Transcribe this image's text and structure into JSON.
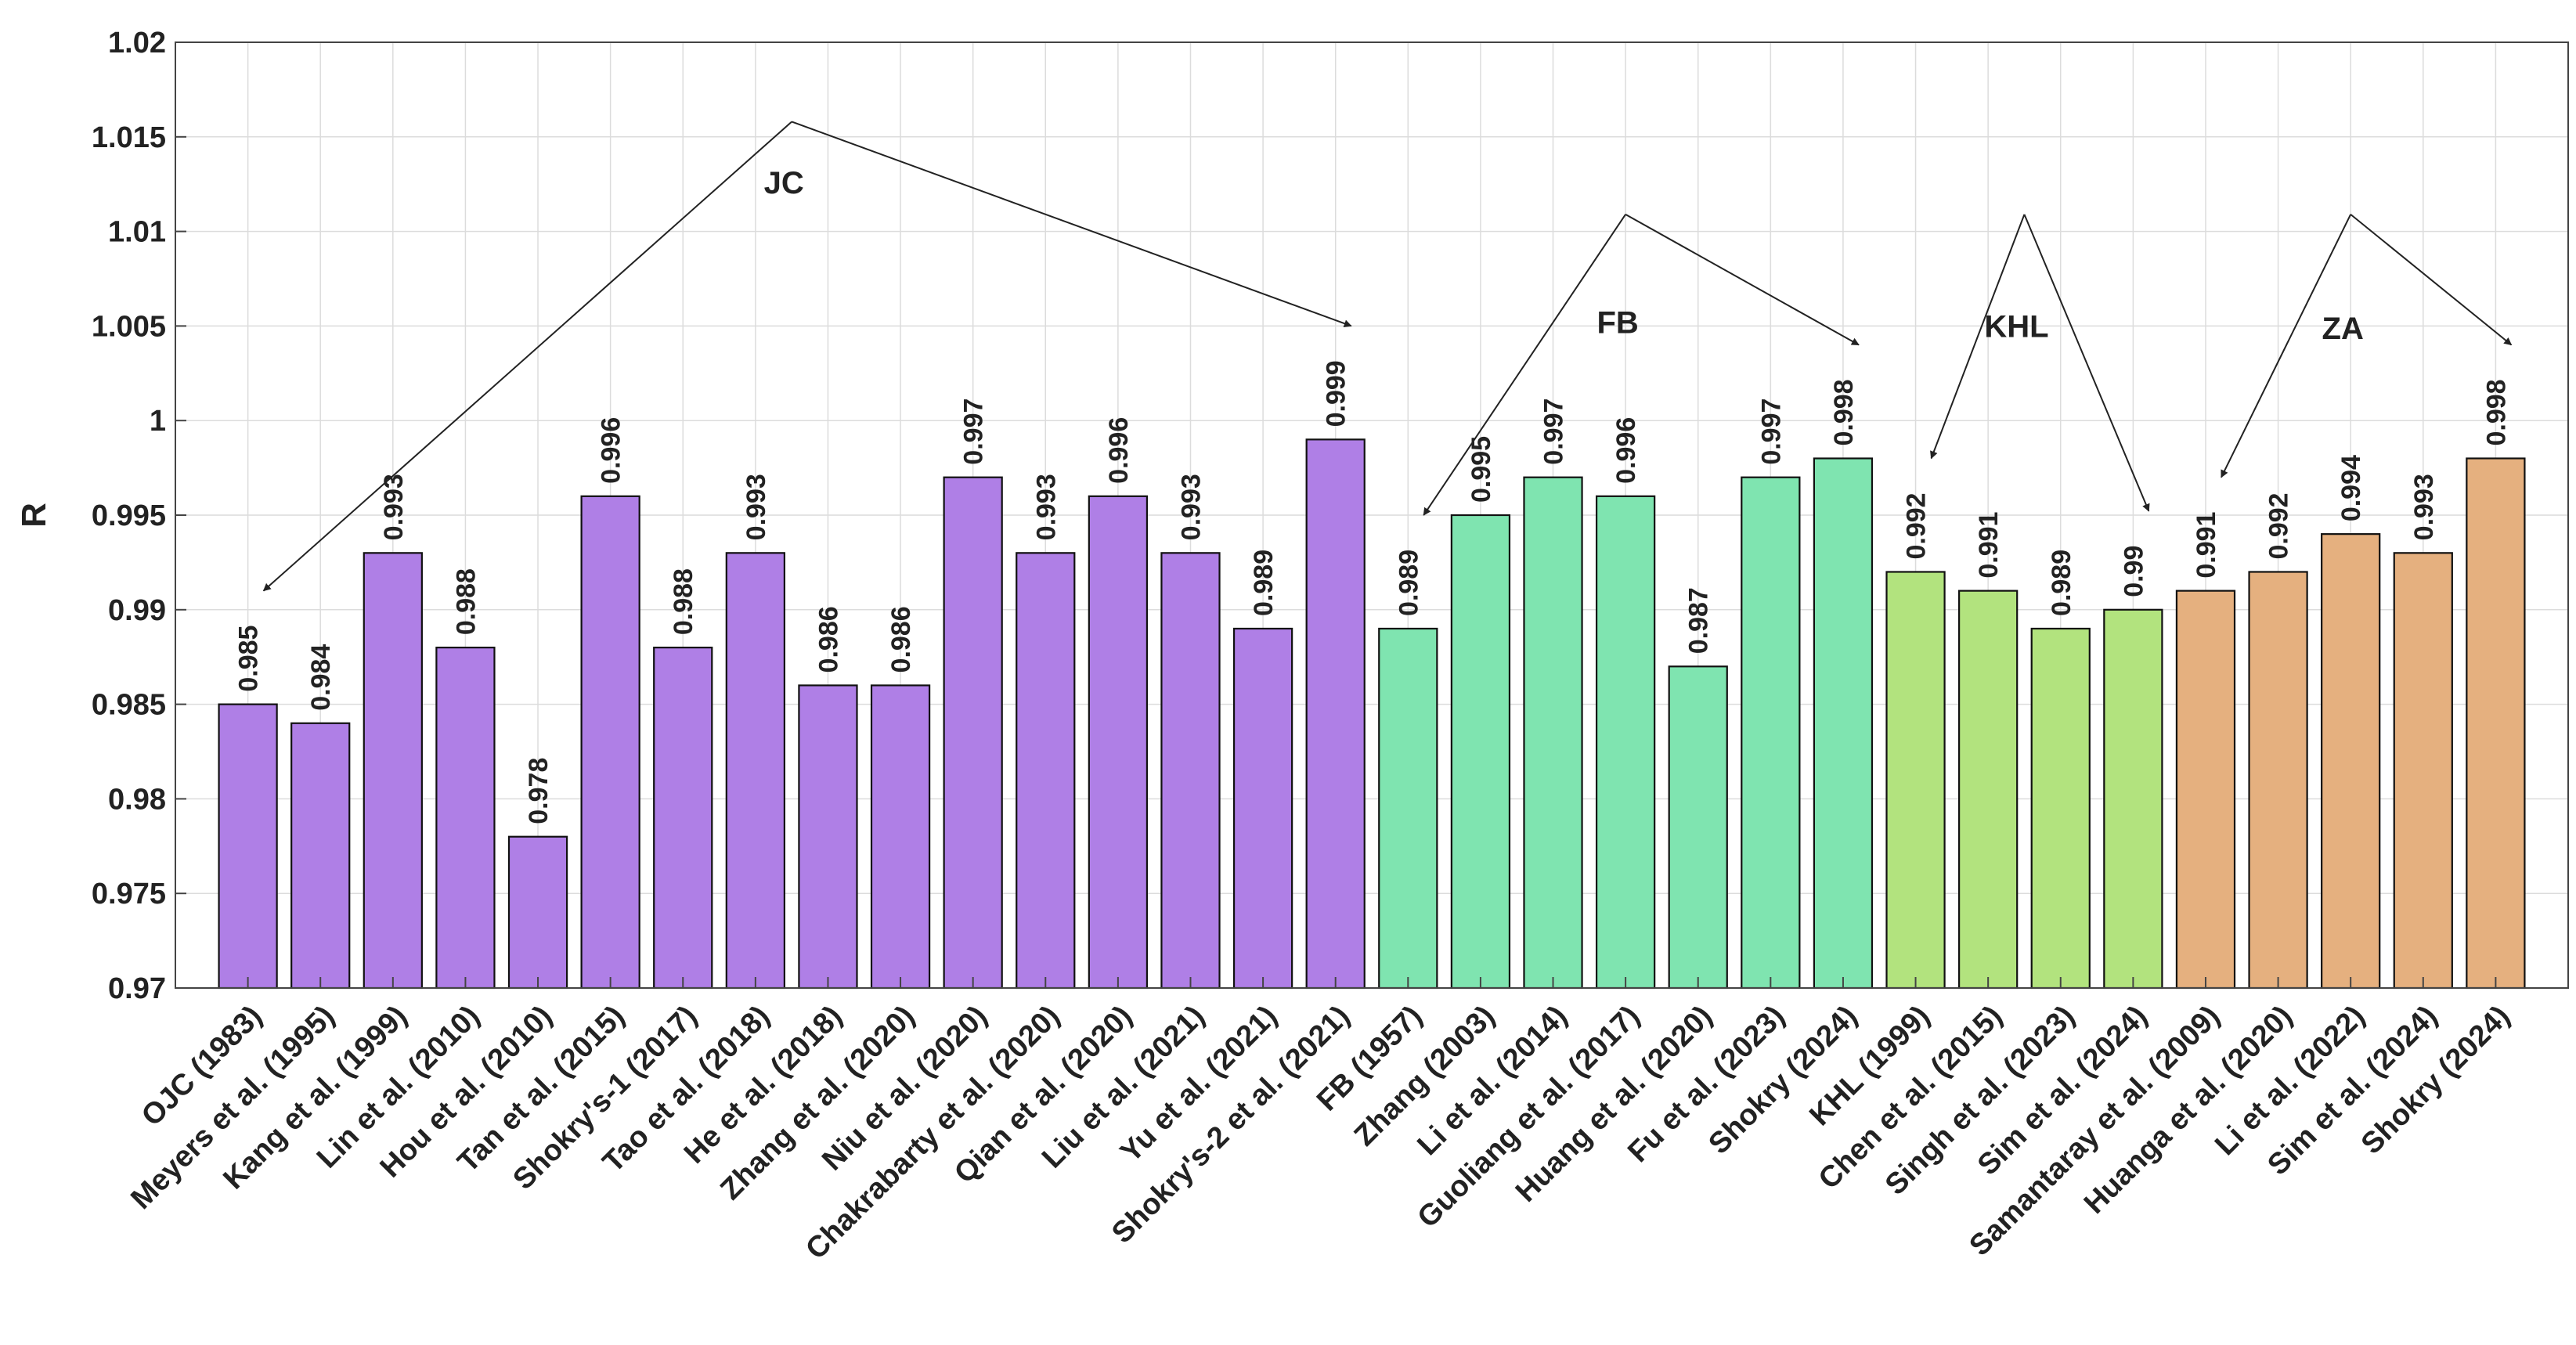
{
  "chart_data": {
    "type": "bar",
    "title": "",
    "xlabel": "",
    "ylabel": "R",
    "ylim": [
      0.97,
      1.02
    ],
    "yticks": [
      "0.97",
      "0.975",
      "0.98",
      "0.985",
      "0.99",
      "0.995",
      "1",
      "1.005",
      "1.01",
      "1.015",
      "1.02"
    ],
    "grid": true,
    "categories": [
      "OJC (1983)",
      "Meyers et al. (1995)",
      "Kang et al. (1999)",
      "Lin et al. (2010)",
      "Hou et al. (2010)",
      "Tan et al. (2015)",
      "Shokry's-1 (2017)",
      "Tao et al. (2018)",
      "He et al. (2018)",
      "Zhang et al. (2020)",
      "Niu et al. (2020)",
      "Chakrabarty et al. (2020)",
      "Qian et al. (2020)",
      "Liu et al. (2021)",
      "Yu et al. (2021)",
      "Shokry's-2 et al. (2021)",
      "FB (1957)",
      "Zhang (2003)",
      "Li et al. (2014)",
      "Guoliang et al. (2017)",
      "Huang et al. (2020)",
      "Fu et al. (2023)",
      "Shokry (2024)",
      "KHL (1999)",
      "Chen et al. (2015)",
      "Singh et al. (2023)",
      "Sim et al. (2024)",
      "Samantaray et al. (2009)",
      "Huanga et al. (2020)",
      "Li et al. (2022)",
      "Sim et al. (2024)",
      "Shokry (2024)"
    ],
    "values": [
      0.985,
      0.984,
      0.993,
      0.988,
      0.978,
      0.996,
      0.988,
      0.993,
      0.986,
      0.986,
      0.997,
      0.993,
      0.996,
      0.993,
      0.989,
      0.999,
      0.989,
      0.995,
      0.997,
      0.996,
      0.987,
      0.997,
      0.998,
      0.992,
      0.991,
      0.989,
      0.99,
      0.991,
      0.992,
      0.994,
      0.993,
      0.998
    ],
    "value_labels": [
      "0.985",
      "0.984",
      "0.993",
      "0.988",
      "0.978",
      "0.996",
      "0.988",
      "0.993",
      "0.986",
      "0.986",
      "0.997",
      "0.993",
      "0.996",
      "0.993",
      "0.989",
      "0.999",
      "0.989",
      "0.995",
      "0.997",
      "0.996",
      "0.987",
      "0.997",
      "0.998",
      "0.992",
      "0.991",
      "0.989",
      "0.99",
      "0.991",
      "0.992",
      "0.994",
      "0.993",
      "0.998"
    ],
    "groups": [
      {
        "name": "JC",
        "start": 0,
        "end": 15,
        "color": "#af7fe6",
        "label_y": 1.0126,
        "apex_y": 1.0158
      },
      {
        "name": "FB",
        "start": 16,
        "end": 22,
        "color": "#7fe4b0",
        "label_y": 1.0052,
        "apex_y": 1.0109
      },
      {
        "name": "KHL",
        "start": 23,
        "end": 26,
        "color": "#b2e37e",
        "label_y": 1.005,
        "apex_y": 1.0109
      },
      {
        "name": "ZA",
        "start": 27,
        "end": 31,
        "color": "#e5b07f",
        "label_y": 1.0049,
        "apex_y": 1.0109
      }
    ]
  }
}
